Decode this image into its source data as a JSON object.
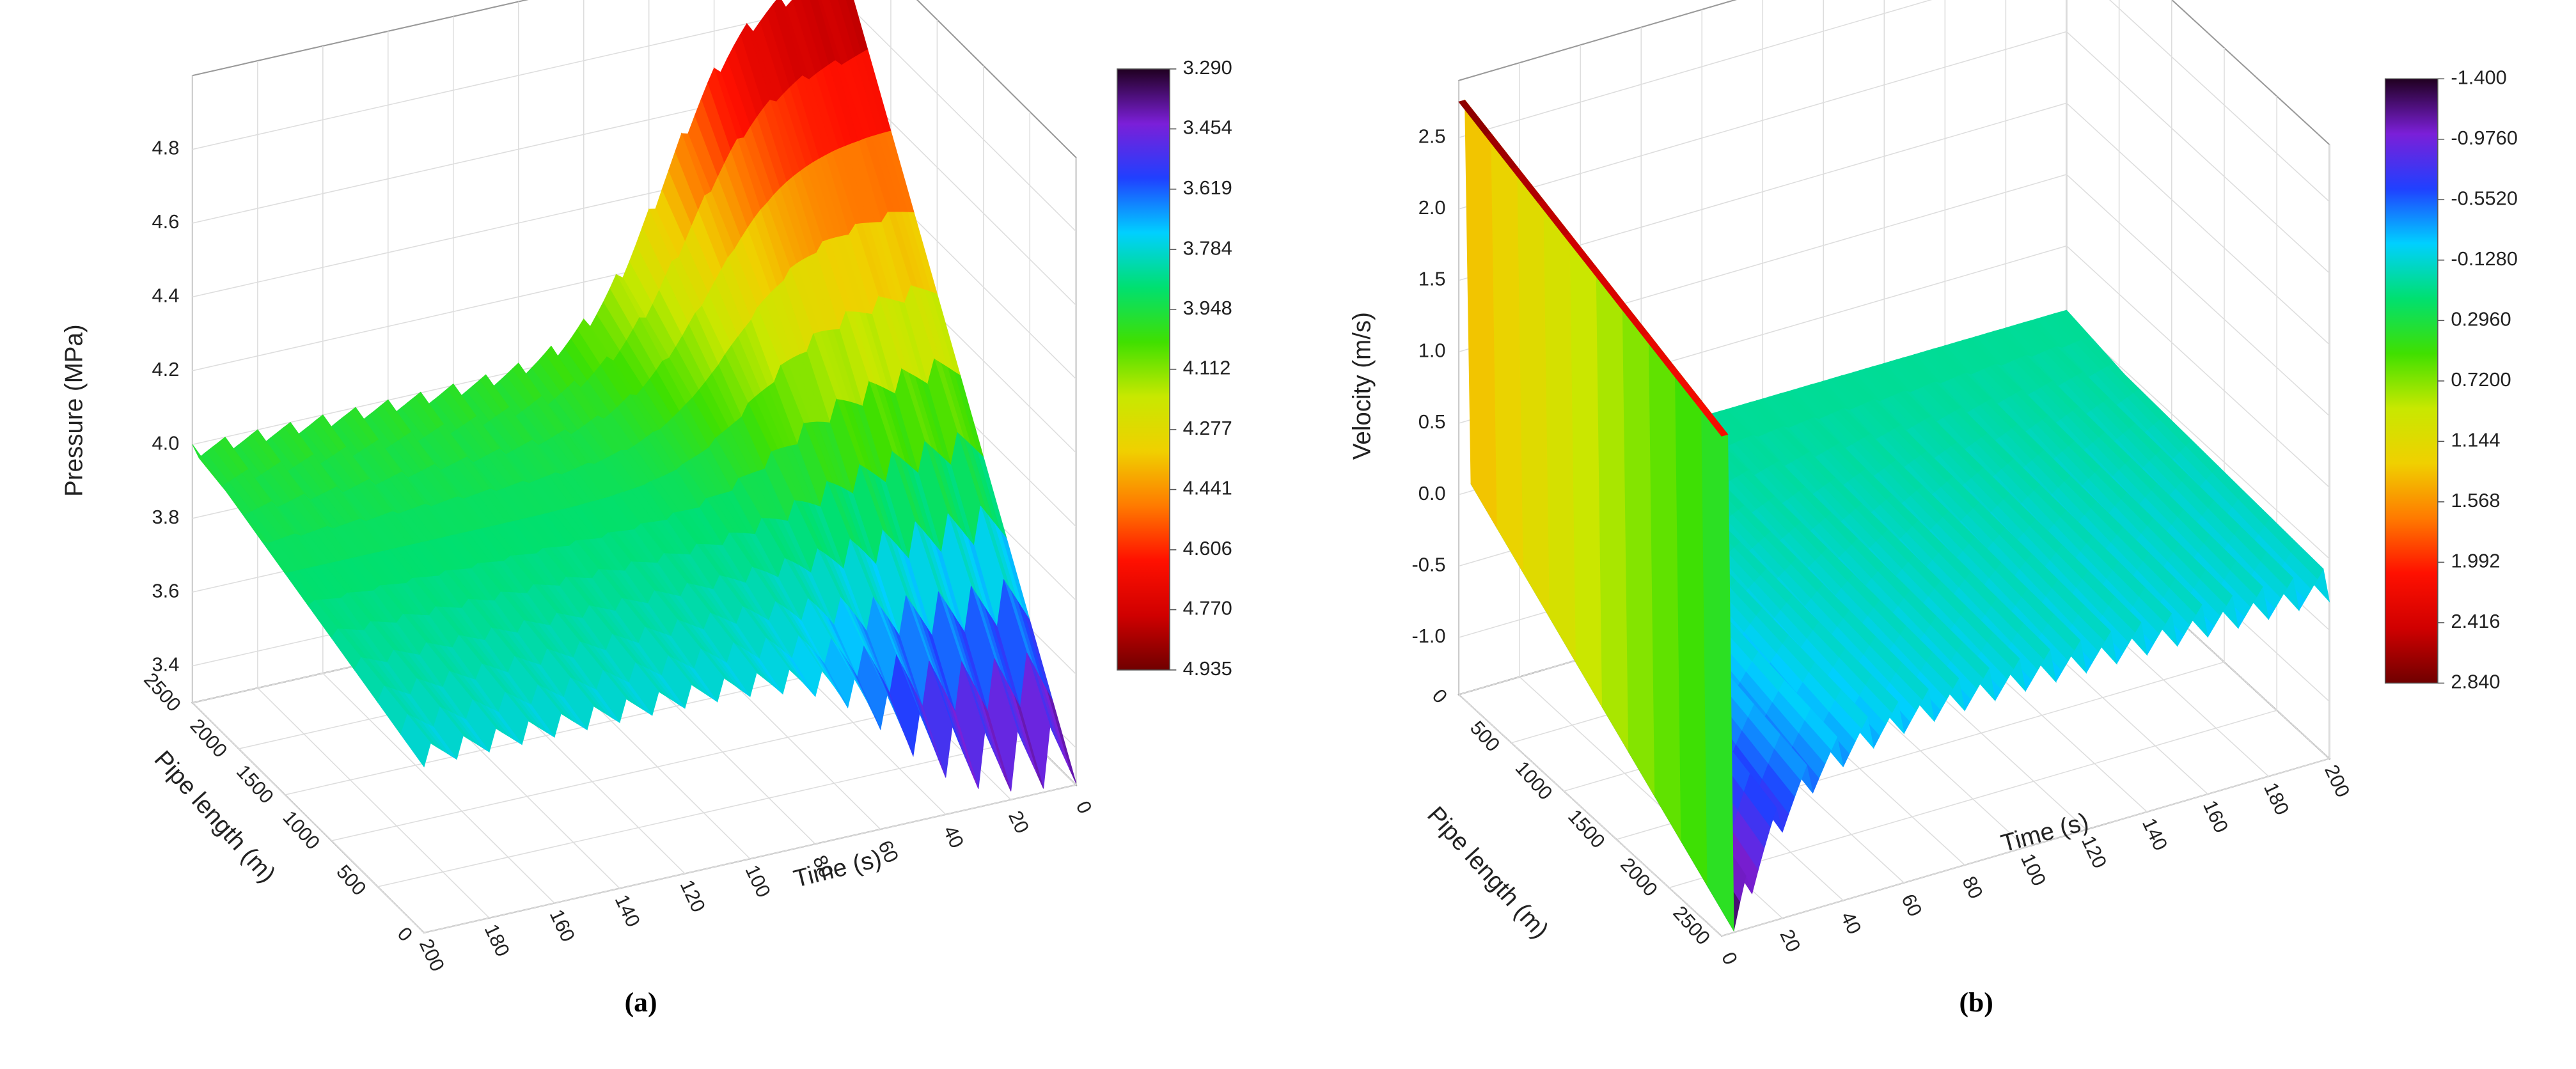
{
  "chart_data": [
    {
      "type": "surface3d",
      "panel_label": "(a)",
      "zlabel": "Pressure (MPa)",
      "xlabel": "Time  (s)",
      "ylabel": "Pipe length (m)",
      "xlim": [
        0,
        200
      ],
      "xticks": [
        0,
        20,
        40,
        60,
        80,
        100,
        120,
        140,
        160,
        180,
        200
      ],
      "ylim": [
        0,
        2500
      ],
      "yticks": [
        0,
        500,
        1000,
        1500,
        2000,
        2500
      ],
      "zlim": [
        3.3,
        5.0
      ],
      "zticks": [
        3.4,
        3.6,
        3.8,
        {
          "value": 4.0,
          "label": "4.0"
        },
        4.2,
        4.4,
        4.6,
        4.8
      ],
      "grid": true,
      "colormap": [
        "#200020",
        "#7b1fd8",
        "#2040ff",
        "#00d0ff",
        "#00e070",
        "#40e000",
        "#c8e800",
        "#f0d000",
        "#ff7a00",
        "#ff1000",
        "#d00000",
        "#700000"
      ],
      "colorbar_ticks": [
        {
          "value": 3.29,
          "label": "3.290"
        },
        3.454,
        3.619,
        3.784,
        3.948,
        4.112,
        4.277,
        4.441,
        4.606,
        {
          "value": 4.77,
          "label": "4.770"
        },
        4.935
      ]
    },
    {
      "type": "surface3d",
      "panel_label": "(b)",
      "zlabel": "Velocity  (m/s)",
      "xlabel": "Time  (s)",
      "ylabel": "Pipe length (m)",
      "xlim": [
        0,
        200
      ],
      "xticks": [
        0,
        20,
        40,
        60,
        80,
        100,
        120,
        140,
        160,
        180,
        200
      ],
      "ylim": [
        0,
        2500
      ],
      "yticks": [
        0,
        500,
        1000,
        1500,
        2000,
        2500
      ],
      "zlim": [
        -1.4,
        2.9
      ],
      "zticks": [
        {
          "value": -1.0,
          "label": "-1.0"
        },
        -0.5,
        {
          "value": 0.0,
          "label": "0.0"
        },
        0.5,
        {
          "value": 1.0,
          "label": "1.0"
        },
        1.5,
        {
          "value": 2.0,
          "label": "2.0"
        },
        2.5
      ],
      "grid": true,
      "colormap": [
        "#200020",
        "#7b1fd8",
        "#2040ff",
        "#00d0ff",
        "#00e070",
        "#40e000",
        "#c8e800",
        "#f0d000",
        "#ff7a00",
        "#ff1000",
        "#d00000",
        "#700000"
      ],
      "colorbar_ticks": [
        {
          "value": -1.4,
          "label": "-1.400"
        },
        {
          "value": -0.976,
          "label": "-0.9760"
        },
        {
          "value": -0.552,
          "label": "-0.5520"
        },
        {
          "value": -0.128,
          "label": "-0.1280"
        },
        {
          "value": 0.296,
          "label": "0.2960"
        },
        {
          "value": 0.72,
          "label": "0.7200"
        },
        1.144,
        1.568,
        1.992,
        2.416,
        {
          "value": 2.84,
          "label": "2.840"
        }
      ]
    }
  ]
}
